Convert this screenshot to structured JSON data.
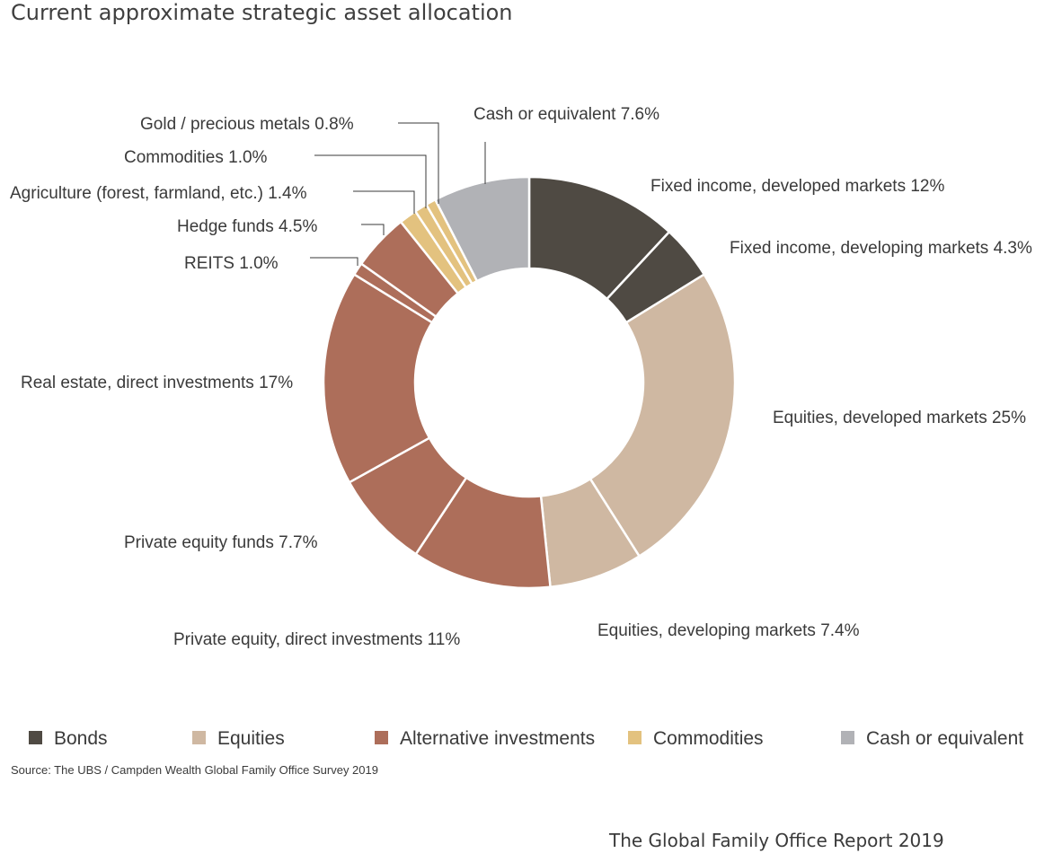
{
  "chart_data": {
    "type": "pie",
    "title": "Current approximate strategic asset allocation",
    "slices": [
      {
        "label": "Fixed income, developed markets 12%",
        "value": 12,
        "category": "Bonds"
      },
      {
        "label": "Fixed income, developing markets 4.3%",
        "value": 4.3,
        "category": "Bonds"
      },
      {
        "label": "Equities, developed markets 25%",
        "value": 25,
        "category": "Equities"
      },
      {
        "label": "Equities, developing markets 7.4%",
        "value": 7.4,
        "category": "Equities"
      },
      {
        "label": "Private equity, direct investments 11%",
        "value": 11,
        "category": "Alternative investments"
      },
      {
        "label": "Private equity funds 7.7%",
        "value": 7.7,
        "category": "Alternative investments"
      },
      {
        "label": "Real estate, direct investments 17%",
        "value": 17,
        "category": "Alternative investments"
      },
      {
        "label": "REITS 1.0%",
        "value": 1.0,
        "category": "Alternative investments"
      },
      {
        "label": "Hedge funds 4.5%",
        "value": 4.5,
        "category": "Alternative investments"
      },
      {
        "label": "Agriculture (forest, farmland, etc.) 1.4%",
        "value": 1.4,
        "category": "Commodities"
      },
      {
        "label": "Commodities 1.0%",
        "value": 1.0,
        "category": "Commodities"
      },
      {
        "label": "Gold / precious metals 0.8%",
        "value": 0.8,
        "category": "Commodities"
      },
      {
        "label": "Cash or equivalent 7.6%",
        "value": 7.6,
        "category": "Cash or equivalent"
      }
    ],
    "legend": [
      {
        "name": "Bonds",
        "color": "#4f4a43"
      },
      {
        "name": "Equities",
        "color": "#cfb8a2"
      },
      {
        "name": "Alternative investments",
        "color": "#ad6e5a"
      },
      {
        "name": "Commodities",
        "color": "#e3c27f"
      },
      {
        "name": "Cash or equivalent",
        "color": "#b1b2b6"
      }
    ],
    "legend_position": "bottom",
    "source": "Source: The UBS / Campden Wealth Global Family Office Survey 2019"
  },
  "footer": "The Global Family Office Report 2019"
}
